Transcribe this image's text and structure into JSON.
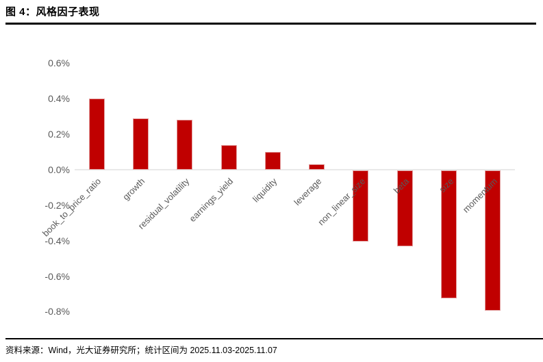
{
  "header": {
    "title": "图 4：风格因子表现"
  },
  "footer": {
    "source": "资料来源：Wind，光大证券研究所；统计区间为 2025.11.03-2025.11.07"
  },
  "colors": {
    "bar_fill": "#c00000",
    "bar_border": "#e2a0a0",
    "axis_text": "#595959",
    "zero_line": "#e9e9e9",
    "rule": "#000000"
  },
  "chart_data": {
    "type": "bar",
    "title": "图 4：风格因子表现",
    "categories": [
      "book_to_price_ratio",
      "growth",
      "residual_volatility",
      "earnings_yield",
      "liquidity",
      "leverage",
      "non_linear_size",
      "beta",
      "size",
      "momentum"
    ],
    "values": [
      0.4,
      0.29,
      0.28,
      0.14,
      0.1,
      0.03,
      -0.4,
      -0.43,
      -0.72,
      -0.79
    ],
    "unit": "%",
    "xlabel": "",
    "ylabel": "",
    "y_ticks": [
      0.6,
      0.4,
      0.2,
      0.0,
      -0.2,
      -0.4,
      -0.6,
      -0.8
    ],
    "ylim": [
      -0.8,
      0.6
    ],
    "grid": false,
    "legend": false,
    "bar_color": "#c00000",
    "tick_format": "0.0%"
  }
}
